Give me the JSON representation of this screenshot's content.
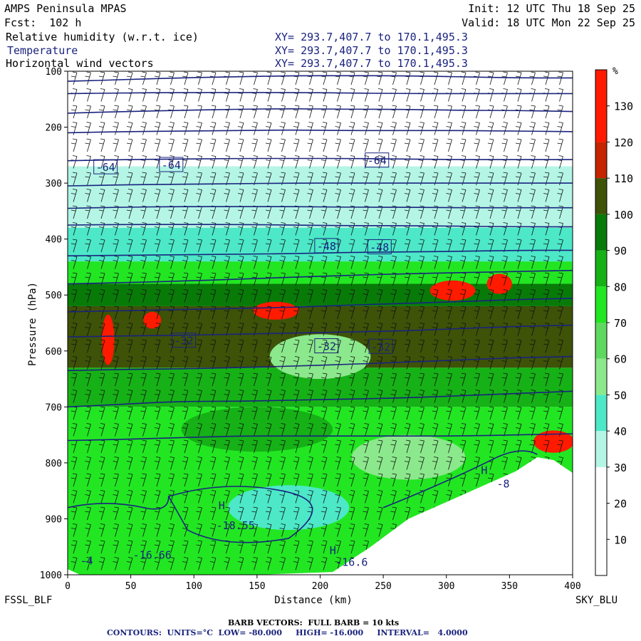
{
  "header": {
    "model": "AMPS Peninsula MPAS",
    "init": "Init: 12 UTC Thu 18 Sep 25",
    "fcst": "Fcst:  102 h",
    "valid": "Valid: 18 UTC Mon 22 Sep 25",
    "field1": "Relative humidity (w.r.t. ice)",
    "field2": "Temperature",
    "field3": "Horizontal wind vectors",
    "xy1": "XY= 293.7,407.7 to 170.1,495.3",
    "xy2": "XY= 293.7,407.7 to 170.1,495.3",
    "xy3": "XY= 293.7,407.7 to 170.1,495.3"
  },
  "chart_data": {
    "type": "heatmap",
    "xlabel": "Distance (km)",
    "ylabel": "Pressure (hPa)",
    "xlim": [
      0,
      400
    ],
    "ylim": [
      1000,
      100
    ],
    "x_ticks": [
      0,
      50,
      100,
      150,
      200,
      250,
      300,
      350,
      400
    ],
    "y_ticks": [
      100,
      200,
      300,
      400,
      500,
      600,
      700,
      800,
      900,
      1000
    ],
    "left_endpoint": "FSSL_BLF",
    "right_endpoint": "SKY_BLU",
    "colorbar": {
      "unit": "%",
      "ticks": [
        10,
        20,
        30,
        40,
        50,
        60,
        70,
        80,
        90,
        100,
        110,
        120,
        130
      ],
      "bins": [
        {
          "from": 0,
          "to": 30,
          "color": "#ffffff"
        },
        {
          "from": 30,
          "to": 40,
          "color": "#b4f5e6"
        },
        {
          "from": 40,
          "to": 50,
          "color": "#4ce8c8"
        },
        {
          "from": 50,
          "to": 60,
          "color": "#8ce88c"
        },
        {
          "from": 60,
          "to": 70,
          "color": "#5fd85f"
        },
        {
          "from": 70,
          "to": 80,
          "color": "#22e622"
        },
        {
          "from": 80,
          "to": 90,
          "color": "#16b116"
        },
        {
          "from": 90,
          "to": 100,
          "color": "#087a08"
        },
        {
          "from": 100,
          "to": 110,
          "color": "#3e5208"
        },
        {
          "from": 110,
          "to": 120,
          "color": "#c42400"
        },
        {
          "from": 120,
          "to": 140,
          "color": "#ff1a00"
        }
      ]
    },
    "rh_layers": [
      {
        "from_hPa": 100,
        "to_hPa": 270,
        "rh": 10
      },
      {
        "from_hPa": 270,
        "to_hPa": 380,
        "rh": 32
      },
      {
        "from_hPa": 380,
        "to_hPa": 440,
        "rh": 45
      },
      {
        "from_hPa": 440,
        "to_hPa": 480,
        "rh": 75
      },
      {
        "from_hPa": 480,
        "to_hPa": 520,
        "rh": 95
      },
      {
        "from_hPa": 520,
        "to_hPa": 630,
        "rh": 104
      },
      {
        "from_hPa": 630,
        "to_hPa": 700,
        "rh": 88
      },
      {
        "from_hPa": 700,
        "to_hPa": 1000,
        "rh": 72
      }
    ],
    "rh_patches": [
      {
        "x": 32,
        "p": 580,
        "rx": 5,
        "rp": 45,
        "rh": 125
      },
      {
        "x": 67,
        "p": 545,
        "rx": 7,
        "rp": 15,
        "rh": 125
      },
      {
        "x": 165,
        "p": 528,
        "rx": 18,
        "rp": 16,
        "rh": 125
      },
      {
        "x": 305,
        "p": 492,
        "rx": 18,
        "rp": 18,
        "rh": 125
      },
      {
        "x": 342,
        "p": 480,
        "rx": 10,
        "rp": 18,
        "rh": 125
      },
      {
        "x": 385,
        "p": 762,
        "rx": 16,
        "rp": 20,
        "rh": 125
      },
      {
        "x": 175,
        "p": 880,
        "rx": 48,
        "rp": 40,
        "rh": 45
      },
      {
        "x": 200,
        "p": 610,
        "rx": 40,
        "rp": 40,
        "rh": 55
      },
      {
        "x": 150,
        "p": 740,
        "rx": 60,
        "rp": 40,
        "rh": 85
      },
      {
        "x": 270,
        "p": 790,
        "rx": 45,
        "rp": 40,
        "rh": 55
      }
    ],
    "terrain": [
      {
        "x": 0,
        "p": 990
      },
      {
        "x": 10,
        "p": 1000
      },
      {
        "x": 50,
        "p": 1000
      },
      {
        "x": 150,
        "p": 1000
      },
      {
        "x": 210,
        "p": 995
      },
      {
        "x": 240,
        "p": 950
      },
      {
        "x": 270,
        "p": 900
      },
      {
        "x": 300,
        "p": 870
      },
      {
        "x": 330,
        "p": 840
      },
      {
        "x": 355,
        "p": 815
      },
      {
        "x": 372,
        "p": 790
      },
      {
        "x": 385,
        "p": 795
      },
      {
        "x": 400,
        "p": 818
      },
      {
        "x": 400,
        "p": 1000
      }
    ],
    "temperature_contours": {
      "units": "°C",
      "low": -80.0,
      "high": -16.0,
      "interval": 4.0,
      "levels": [
        {
          "t": -76,
          "p": [
            118,
            115,
            112,
            110,
            108,
            108,
            108,
            110,
            112,
            112
          ]
        },
        {
          "t": -72,
          "p": [
            140,
            139,
            138,
            138,
            138,
            139,
            140,
            140,
            140,
            140
          ]
        },
        {
          "t": -68,
          "p": [
            175,
            172,
            170,
            168,
            167,
            168,
            168,
            170,
            170,
            172
          ]
        },
        {
          "t": -64,
          "p": [
            210,
            208,
            207,
            206,
            205,
            206,
            206,
            206,
            207,
            208
          ]
        },
        {
          "t": -60,
          "p": [
            260,
            258,
            257,
            256,
            256,
            256,
            257,
            258,
            258,
            258
          ]
        },
        {
          "t": -56,
          "p": [
            305,
            303,
            302,
            301,
            300,
            300,
            300,
            300,
            300,
            300
          ]
        },
        {
          "t": -52,
          "p": [
            345,
            343,
            342,
            342,
            342,
            343,
            343,
            344,
            344,
            344
          ]
        },
        {
          "t": -48,
          "p": [
            375,
            374,
            374,
            374,
            375,
            376,
            376,
            377,
            378,
            378
          ]
        },
        {
          "t": -44,
          "p": [
            430,
            429,
            428,
            427,
            426,
            424,
            423,
            422,
            420,
            420
          ]
        },
        {
          "t": -40,
          "p": [
            480,
            478,
            475,
            472,
            468,
            465,
            462,
            460,
            458,
            456
          ]
        },
        {
          "t": -36,
          "p": [
            530,
            528,
            526,
            524,
            522,
            518,
            515,
            512,
            508,
            506
          ]
        },
        {
          "t": -32,
          "p": [
            575,
            573,
            572,
            570,
            568,
            566,
            564,
            560,
            556,
            554
          ]
        },
        {
          "t": -28,
          "p": [
            635,
            633,
            632,
            630,
            627,
            624,
            620,
            616,
            612,
            610
          ]
        },
        {
          "t": -24,
          "p": [
            700,
            695,
            690,
            690,
            688,
            686,
            684,
            680,
            676,
            672
          ]
        },
        {
          "t": -20,
          "p": [
            760,
            758,
            755,
            752,
            752,
            752,
            752,
            752,
            750,
            748
          ]
        }
      ],
      "labels": [
        {
          "text": "-64",
          "x": 30,
          "p": 272
        },
        {
          "text": "-64",
          "x": 82,
          "p": 268
        },
        {
          "text": "-64",
          "x": 245,
          "p": 260
        },
        {
          "text": "-48",
          "x": 205,
          "p": 413
        },
        {
          "text": "-48",
          "x": 247,
          "p": 415
        },
        {
          "text": "-32",
          "x": 92,
          "p": 582
        },
        {
          "text": "-32",
          "x": 205,
          "p": 592
        },
        {
          "text": "-32",
          "x": 248,
          "p": 593
        },
        {
          "text": "-16.66",
          "x": 67,
          "p": 965
        },
        {
          "text": "-18.55",
          "x": 133,
          "p": 912
        },
        {
          "text": "-16.6",
          "x": 225,
          "p": 978
        },
        {
          "text": "-4",
          "x": 15,
          "p": 975
        },
        {
          "text": "-8",
          "x": 345,
          "p": 838
        }
      ],
      "highs": [
        {
          "text": "H",
          "x": 122,
          "p": 883
        },
        {
          "text": "H",
          "x": 210,
          "p": 963
        },
        {
          "text": "H",
          "x": 330,
          "p": 820
        }
      ]
    },
    "wind_vectors": {
      "barb_legend": "BARB VECTORS:  FULL BARB = 10 kts",
      "contour_legend": "CONTOURS:  UNITS=°C  LOW= -80.000     HIGH= -16.000     INTERVAL=   4.0000"
    }
  },
  "colors": {
    "contour": "#1a237e",
    "text_blue": "#1a237e"
  }
}
